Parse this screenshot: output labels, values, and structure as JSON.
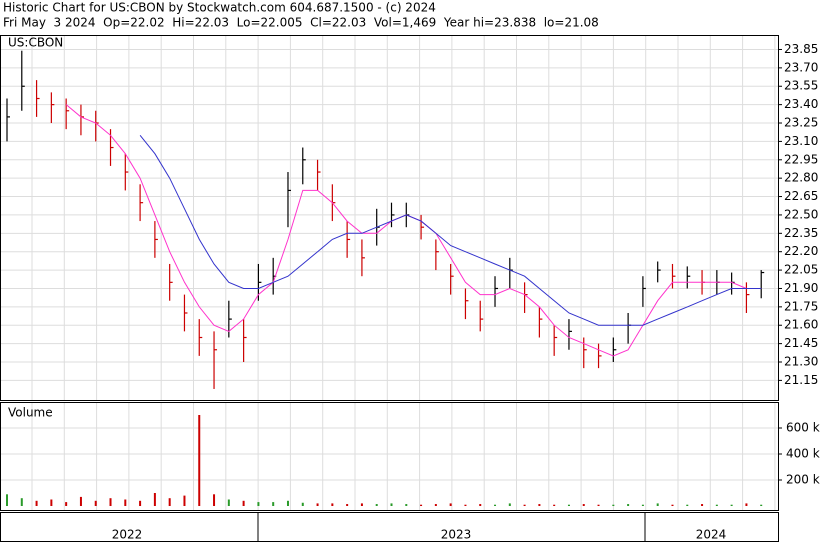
{
  "chart_data": {
    "type": "ohlc",
    "title": "Historic Chart for US:CBON by Stockwatch.com 604.687.1500 - (c) 2024",
    "subtitle": "Fri May  3 2024  Op=22.02  Hi=22.03  Lo=22.005  Cl=22.03  Vol=1,469  Year hi=23.838  lo=21.08",
    "symbol_label": "US:CBON",
    "volume_label": "Volume",
    "x_labels": [
      "2022",
      "2023",
      "2024"
    ],
    "ylim": [
      20.99,
      23.96
    ],
    "yticks": [
      23.85,
      {
        "value": 23.7,
        "label": "23.70"
      },
      23.55,
      {
        "value": 23.4,
        "label": "23.40"
      },
      23.25,
      {
        "value": 23.1,
        "label": "23.10"
      },
      22.95,
      {
        "value": 22.8,
        "label": "22.80"
      },
      22.65,
      {
        "value": 22.5,
        "label": "22.50"
      },
      22.35,
      {
        "value": 22.2,
        "label": "22.20"
      },
      22.05,
      {
        "value": 21.9,
        "label": "21.90"
      },
      21.75,
      {
        "value": 21.6,
        "label": "21.60"
      },
      21.45,
      {
        "value": 21.3,
        "label": "21.30"
      },
      21.15
    ],
    "grid": true,
    "bar_color": "#000000",
    "down_color": "#cc0000",
    "high": [
      23.45,
      23.84,
      23.6,
      23.5,
      23.45,
      23.4,
      23.35,
      23.2,
      23.0,
      22.75,
      22.45,
      22.1,
      21.85,
      21.65,
      21.55,
      21.8,
      21.65,
      22.1,
      22.15,
      22.85,
      23.05,
      22.95,
      22.75,
      22.45,
      22.3,
      22.55,
      22.6,
      22.6,
      22.5,
      22.3,
      22.1,
      21.9,
      21.8,
      22.0,
      22.15,
      21.95,
      21.75,
      21.6,
      21.65,
      21.5,
      21.45,
      21.5,
      21.7,
      22.0,
      22.12,
      22.1,
      22.08,
      22.05,
      22.05,
      22.03,
      21.95,
      22.05
    ],
    "low": [
      23.1,
      23.35,
      23.3,
      23.25,
      23.2,
      23.15,
      23.1,
      22.9,
      22.7,
      22.45,
      22.15,
      21.8,
      21.55,
      21.35,
      21.08,
      21.5,
      21.3,
      21.8,
      21.85,
      22.4,
      22.75,
      22.7,
      22.45,
      22.15,
      22.0,
      22.25,
      22.4,
      22.4,
      22.3,
      22.05,
      21.85,
      21.65,
      21.55,
      21.75,
      21.9,
      21.7,
      21.5,
      21.35,
      21.4,
      21.25,
      21.25,
      21.3,
      21.45,
      21.75,
      21.95,
      21.9,
      21.9,
      21.85,
      21.85,
      21.85,
      21.7,
      21.82
    ],
    "close": [
      23.3,
      23.55,
      23.45,
      23.4,
      23.35,
      23.3,
      23.25,
      23.05,
      22.85,
      22.6,
      22.3,
      21.95,
      21.7,
      21.5,
      21.4,
      21.65,
      21.5,
      21.95,
      22.0,
      22.7,
      22.95,
      22.85,
      22.6,
      22.3,
      22.15,
      22.4,
      22.5,
      22.5,
      22.4,
      22.2,
      22.0,
      21.8,
      21.65,
      21.9,
      22.05,
      21.85,
      21.65,
      21.5,
      21.55,
      21.4,
      21.35,
      21.4,
      21.6,
      21.9,
      22.05,
      22.0,
      22.0,
      21.95,
      21.95,
      21.95,
      21.85,
      22.03
    ],
    "series": [
      {
        "name": "short average",
        "color": "#ff33cc",
        "values": [
          null,
          null,
          null,
          null,
          23.4,
          23.3,
          23.25,
          23.15,
          23.0,
          22.8,
          22.5,
          22.2,
          21.95,
          21.75,
          21.6,
          21.55,
          21.65,
          21.85,
          21.95,
          22.3,
          22.7,
          22.7,
          22.6,
          22.45,
          22.35,
          22.35,
          22.45,
          22.5,
          22.45,
          22.35,
          22.15,
          21.95,
          21.85,
          21.85,
          21.9,
          21.85,
          21.75,
          21.6,
          21.5,
          21.45,
          21.4,
          21.35,
          21.4,
          21.6,
          21.8,
          21.95,
          21.95,
          21.95,
          21.95,
          21.95,
          21.9,
          21.9
        ]
      },
      {
        "name": "long average",
        "color": "#3333cc",
        "values": [
          null,
          null,
          null,
          null,
          null,
          null,
          null,
          null,
          null,
          23.15,
          23.0,
          22.8,
          22.55,
          22.3,
          22.1,
          21.95,
          21.9,
          21.9,
          21.95,
          22.0,
          22.1,
          22.2,
          22.3,
          22.35,
          22.35,
          22.4,
          22.45,
          22.5,
          22.45,
          22.35,
          22.25,
          22.2,
          22.15,
          22.1,
          22.05,
          22.0,
          21.9,
          21.8,
          21.7,
          21.65,
          21.6,
          21.6,
          21.6,
          21.6,
          21.65,
          21.7,
          21.75,
          21.8,
          21.85,
          21.9,
          21.9,
          21.9
        ]
      }
    ],
    "volume": [
      90000,
      60000,
      40000,
      50000,
      30000,
      70000,
      40000,
      60000,
      50000,
      40000,
      100000,
      60000,
      80000,
      700000,
      90000,
      50000,
      40000,
      30000,
      30000,
      40000,
      25000,
      20000,
      20000,
      15000,
      20000,
      15000,
      20000,
      15000,
      10000,
      15000,
      20000,
      10000,
      15000,
      10000,
      20000,
      10000,
      15000,
      10000,
      10000,
      15000,
      10000,
      10000,
      15000,
      10000,
      20000,
      10000,
      10000,
      15000,
      10000,
      10000,
      20000,
      10000
    ],
    "vlim": [
      0,
      800000
    ],
    "vticks": [
      {
        "value": 600000,
        "label": "600 k"
      },
      {
        "value": 400000,
        "label": "400 k"
      },
      {
        "value": 200000,
        "label": "200 k"
      }
    ]
  }
}
